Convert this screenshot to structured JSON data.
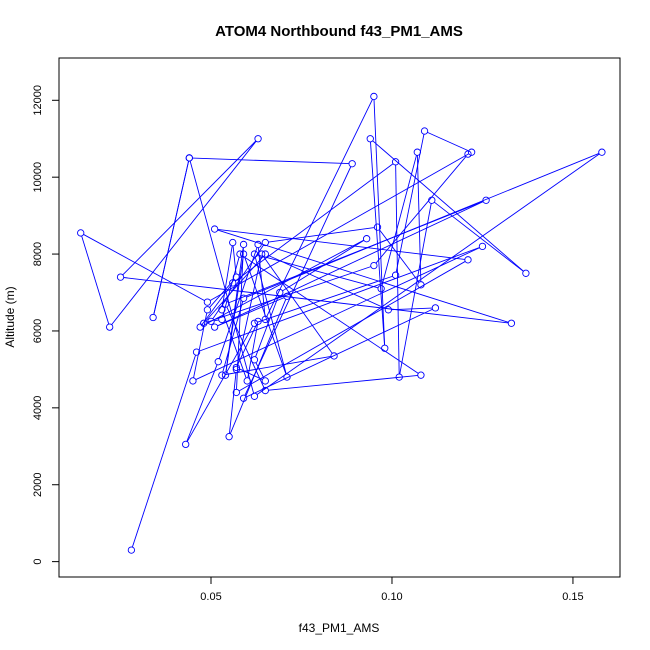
{
  "chart_data": {
    "type": "line",
    "title": "ATOM4 Northbound f43_PM1_AMS",
    "xlabel": "f43_PM1_AMS",
    "ylabel": "Altitude (m)",
    "xlim": [
      0.008,
      0.163
    ],
    "ylim": [
      -400,
      13100
    ],
    "x_ticks": [
      0.05,
      0.1,
      0.15
    ],
    "x_tick_labels": [
      "0.05",
      "0.10",
      "0.15"
    ],
    "y_ticks": [
      0,
      2000,
      4000,
      6000,
      8000,
      10000,
      12000
    ],
    "y_tick_labels": [
      "0",
      "2000",
      "4000",
      "6000",
      "8000",
      "10000",
      "12000"
    ],
    "grid": false,
    "colors": {
      "series": "#0000ff",
      "axes": "#000000"
    },
    "series": [
      {
        "marker": "open-circle",
        "x": [
          0.028,
          0.046,
          0.125,
          0.045,
          0.049,
          0.057,
          0.056,
          0.053,
          0.06,
          0.063,
          0.057,
          0.065,
          0.062,
          0.069,
          0.093,
          0.047,
          0.056,
          0.101,
          0.102,
          0.111,
          0.137,
          0.094,
          0.098,
          0.095,
          0.065,
          0.063,
          0.052,
          0.043,
          0.062,
          0.101,
          0.109,
          0.122,
          0.049,
          0.014,
          0.022,
          0.063,
          0.025,
          0.133,
          0.051,
          0.121,
          0.057,
          0.059,
          0.054,
          0.059,
          0.071,
          0.062,
          0.097,
          0.107,
          0.108,
          0.096,
          0.065,
          0.05,
          0.053,
          0.058,
          0.108,
          0.065,
          0.054,
          0.126,
          0.051,
          0.071,
          0.055,
          0.057,
          0.064,
          0.084,
          0.053,
          0.059,
          0.158,
          0.062,
          0.044,
          0.034,
          0.044,
          0.089,
          0.059,
          0.112,
          0.099,
          0.065,
          0.048,
          0.095,
          0.121
        ],
        "y": [
          300,
          5450,
          8200,
          4700,
          6550,
          7400,
          8300,
          6550,
          4700,
          6250,
          5050,
          4700,
          5250,
          7000,
          8400,
          6100,
          7250,
          10400,
          4800,
          9400,
          7500,
          11000,
          5550,
          12100,
          6300,
          8250,
          5200,
          3050,
          6200,
          7450,
          11200,
          10650,
          6750,
          8550,
          6100,
          11000,
          7400,
          6200,
          8650,
          7850,
          4400,
          8250,
          4850,
          8000,
          4800,
          8000,
          7100,
          10650,
          7200,
          8700,
          8300,
          6250,
          6300,
          8000,
          4850,
          4450,
          6700,
          9400,
          6100,
          6900,
          3250,
          5000,
          8000,
          5350,
          4850,
          6850,
          10650,
          4300,
          10500,
          6350,
          10500,
          10350,
          4250,
          6600,
          6550,
          8000,
          6200,
          7700,
          10600
        ]
      }
    ]
  }
}
